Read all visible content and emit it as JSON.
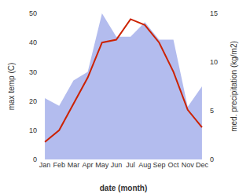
{
  "chart_data": {
    "type": "line",
    "categories": [
      "Jan",
      "Feb",
      "Mar",
      "Apr",
      "May",
      "Jun",
      "Jul",
      "Aug",
      "Sep",
      "Oct",
      "Nov",
      "Dec"
    ],
    "xlabel": "date (month)",
    "ylabel": "max temp (C)",
    "y2label": "med. precipitation (kg/m2)",
    "ylim": [
      0,
      50
    ],
    "yticks": [
      0,
      10,
      20,
      30,
      40,
      50
    ],
    "y2lim": [
      0,
      15
    ],
    "y2ticks": [
      0,
      5,
      10,
      15
    ],
    "grid": false,
    "series": [
      {
        "type": "area",
        "color": "#b3bcee",
        "axis": "y2",
        "values": [
          6.3,
          5.5,
          8.1,
          9.0,
          15.0,
          12.6,
          12.6,
          14.1,
          12.3,
          12.3,
          5.4,
          7.5
        ]
      },
      {
        "type": "line",
        "color": "#cc2200",
        "values": [
          6,
          10,
          19,
          28,
          40,
          41,
          48,
          46,
          40,
          30,
          17,
          11
        ]
      }
    ]
  }
}
